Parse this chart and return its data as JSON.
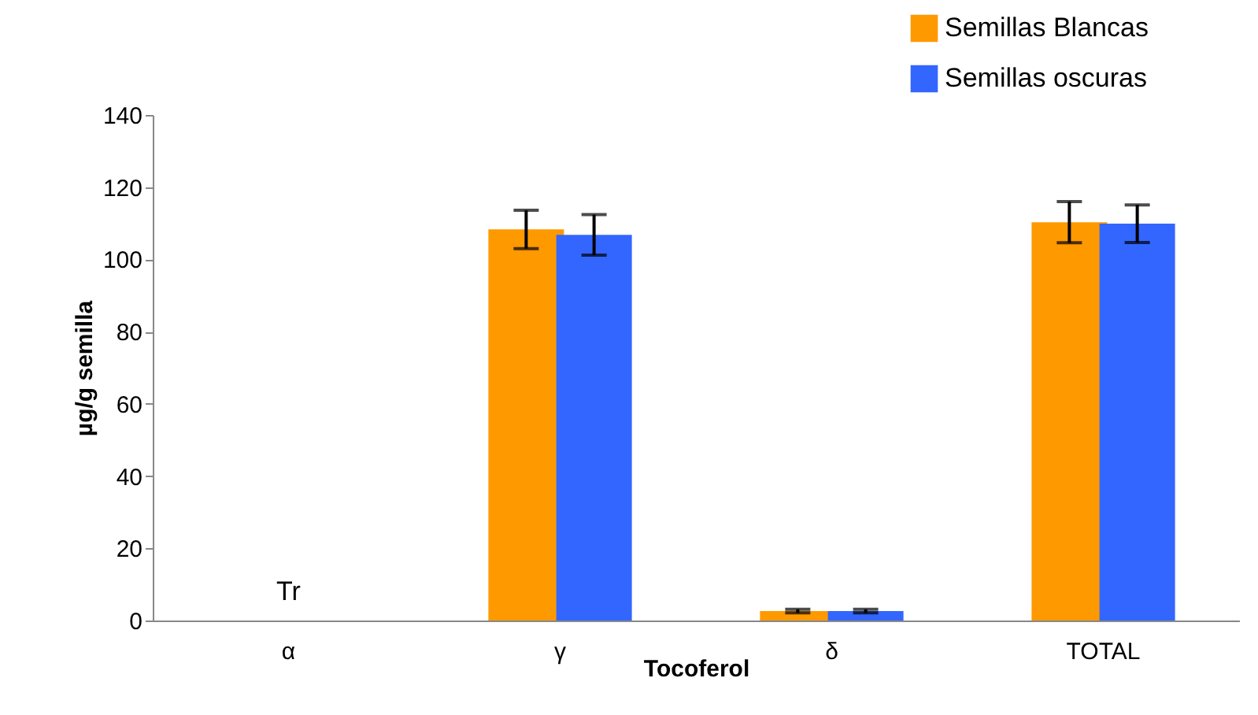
{
  "chart_data": {
    "type": "bar",
    "xlabel": "Tocoferol",
    "ylabel": "µg/g semilla",
    "categories": [
      "α",
      "γ",
      "δ",
      "TOTAL"
    ],
    "series": [
      {
        "name": "Semillas Blancas",
        "color": "#ff9900",
        "values": [
          null,
          108.3,
          2.6,
          110.3
        ],
        "errors": [
          null,
          5.3,
          0.5,
          5.7
        ]
      },
      {
        "name": "Semillas oscuras",
        "color": "#3366ff",
        "values": [
          null,
          106.8,
          2.6,
          109.9
        ],
        "errors": [
          null,
          5.6,
          0.5,
          5.2
        ]
      }
    ],
    "ylim": [
      0,
      140
    ],
    "yticks": [
      0,
      20,
      40,
      60,
      80,
      100,
      120,
      140
    ],
    "grid": false,
    "legend": "top right",
    "annotations": [
      "Tr"
    ]
  }
}
